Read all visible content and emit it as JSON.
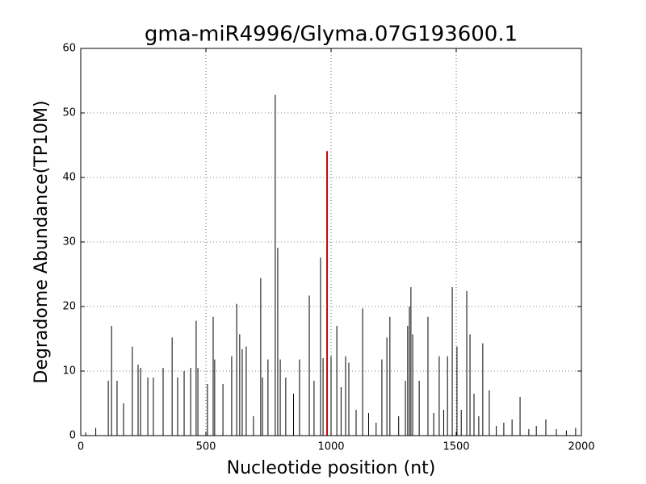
{
  "chart_data": {
    "type": "vlines",
    "title": "gma-miR4996/Glyma.07G193600.1",
    "xlabel": "Nucleotide position (nt)",
    "ylabel": "Degradome Abundance(TP10M)",
    "xlim": [
      0,
      2000
    ],
    "xticks": [
      0,
      500,
      1000,
      1500,
      2000
    ],
    "ylim": [
      0,
      60
    ],
    "yticks": [
      0,
      10,
      20,
      30,
      40,
      50,
      60
    ],
    "grid": true,
    "series": [
      {
        "color": "#000000",
        "x": [
          20,
          60,
          110,
          123,
          145,
          171,
          206,
          229,
          239,
          268,
          290,
          329,
          365,
          387,
          413,
          439,
          461,
          468,
          506,
          529,
          535,
          568,
          603,
          623,
          635,
          645,
          661,
          690,
          719,
          726,
          748,
          777,
          787,
          797,
          819,
          850,
          874,
          913,
          932,
          958,
          968,
          1000,
          1023,
          1040,
          1058,
          1071,
          1100,
          1126,
          1150,
          1180,
          1203,
          1223,
          1235,
          1270,
          1297,
          1306,
          1313,
          1319,
          1326,
          1352,
          1387,
          1410,
          1432,
          1450,
          1465,
          1484,
          1503,
          1520,
          1542,
          1555,
          1571,
          1590,
          1606,
          1632,
          1660,
          1690,
          1723,
          1755,
          1790,
          1820,
          1858,
          1900,
          1940,
          1977
        ],
        "values": [
          0.5,
          1.2,
          8.5,
          17,
          8.5,
          5,
          13.8,
          11,
          10.5,
          9,
          9,
          10.5,
          15.2,
          9,
          10,
          10.5,
          17.8,
          10.5,
          8,
          18.4,
          11.8,
          8,
          12.3,
          20.4,
          15.7,
          13.4,
          13.8,
          3,
          24.4,
          9,
          11.8,
          52.8,
          29.1,
          11.8,
          9,
          6.5,
          11.8,
          21.7,
          8.5,
          27.6,
          12,
          12.3,
          17,
          7.5,
          12.3,
          11.3,
          4,
          19.7,
          3.5,
          2,
          11.8,
          15.2,
          18.4,
          3,
          8.5,
          17,
          20,
          23,
          15.7,
          8.5,
          18.4,
          3.5,
          12.3,
          4,
          12.3,
          23,
          13.8,
          4,
          22.4,
          15.7,
          6.5,
          3,
          14.3,
          7,
          1.5,
          2,
          2.5,
          6,
          1,
          1.5,
          2.5,
          1,
          0.8,
          1.2
        ]
      },
      {
        "color": "#cc0000",
        "x": [
          984
        ],
        "values": [
          44.1
        ]
      }
    ]
  }
}
